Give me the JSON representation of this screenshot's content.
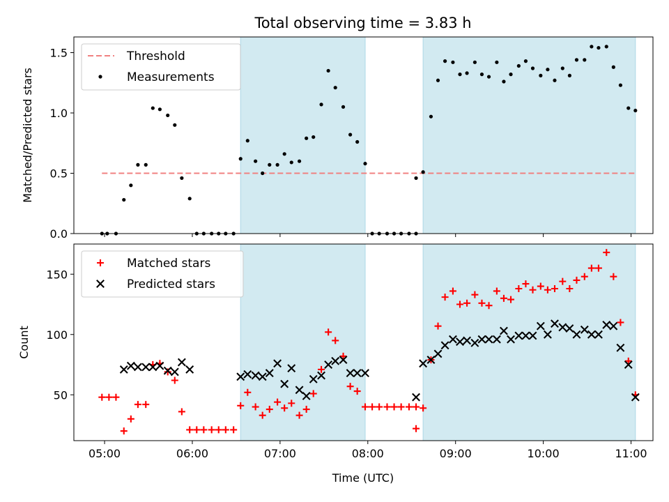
{
  "chart_data": {
    "type": "scatter",
    "title": "Total observing time = 3.83 h",
    "xlabel": "Time (UTC)",
    "x_unit": "hours UTC",
    "xlim": [
      4.65,
      11.25
    ],
    "x_ticks": [
      {
        "value": 5,
        "label": "05:00"
      },
      {
        "value": 6,
        "label": "06:00"
      },
      {
        "value": 7,
        "label": "07:00"
      },
      {
        "value": 8,
        "label": "08:00"
      },
      {
        "value": 9,
        "label": "09:00"
      },
      {
        "value": 10,
        "label": "10:00"
      },
      {
        "value": 11,
        "label": "11:00"
      }
    ],
    "observing_intervals": [
      [
        6.55,
        7.97
      ],
      [
        8.63,
        11.05
      ]
    ],
    "shade_color": "#add8e6",
    "panels": [
      {
        "id": "ratio",
        "ylabel": "Matched/Predicted stars",
        "ylim": [
          0,
          1.63
        ],
        "yticks": [
          "0.0",
          "0.5",
          "1.0",
          "1.5"
        ],
        "legend_position": "upper-left",
        "threshold": {
          "name": "Threshold",
          "value": 0.5,
          "x_range": [
            4.97,
            11.05
          ],
          "color": "#f08080"
        },
        "series": [
          {
            "name": "Measurements",
            "marker": "dot",
            "color": "#000000",
            "points": [
              [
                4.97,
                0.0
              ],
              [
                5.03,
                0.0
              ],
              [
                5.13,
                0.0
              ],
              [
                5.22,
                0.28
              ],
              [
                5.3,
                0.4
              ],
              [
                5.38,
                0.57
              ],
              [
                5.47,
                0.57
              ],
              [
                5.55,
                1.04
              ],
              [
                5.63,
                1.03
              ],
              [
                5.72,
                0.98
              ],
              [
                5.8,
                0.9
              ],
              [
                5.88,
                0.46
              ],
              [
                5.97,
                0.29
              ],
              [
                6.05,
                0.0
              ],
              [
                6.13,
                0.0
              ],
              [
                6.22,
                0.0
              ],
              [
                6.3,
                0.0
              ],
              [
                6.38,
                0.0
              ],
              [
                6.47,
                0.0
              ],
              [
                6.55,
                0.62
              ],
              [
                6.63,
                0.77
              ],
              [
                6.72,
                0.6
              ],
              [
                6.8,
                0.5
              ],
              [
                6.88,
                0.57
              ],
              [
                6.97,
                0.57
              ],
              [
                7.05,
                0.66
              ],
              [
                7.13,
                0.59
              ],
              [
                7.22,
                0.6
              ],
              [
                7.3,
                0.79
              ],
              [
                7.38,
                0.8
              ],
              [
                7.47,
                1.07
              ],
              [
                7.55,
                1.35
              ],
              [
                7.63,
                1.21
              ],
              [
                7.72,
                1.05
              ],
              [
                7.8,
                0.82
              ],
              [
                7.88,
                0.76
              ],
              [
                7.97,
                0.58
              ],
              [
                8.05,
                0.0
              ],
              [
                8.13,
                0.0
              ],
              [
                8.22,
                0.0
              ],
              [
                8.3,
                0.0
              ],
              [
                8.38,
                0.0
              ],
              [
                8.47,
                0.0
              ],
              [
                8.55,
                0.0
              ],
              [
                8.55,
                0.46
              ],
              [
                8.63,
                0.51
              ],
              [
                8.72,
                0.97
              ],
              [
                8.8,
                1.27
              ],
              [
                8.88,
                1.43
              ],
              [
                8.97,
                1.42
              ],
              [
                9.05,
                1.32
              ],
              [
                9.13,
                1.33
              ],
              [
                9.22,
                1.42
              ],
              [
                9.3,
                1.32
              ],
              [
                9.38,
                1.3
              ],
              [
                9.47,
                1.42
              ],
              [
                9.55,
                1.26
              ],
              [
                9.63,
                1.32
              ],
              [
                9.72,
                1.39
              ],
              [
                9.8,
                1.43
              ],
              [
                9.88,
                1.37
              ],
              [
                9.97,
                1.31
              ],
              [
                10.05,
                1.36
              ],
              [
                10.13,
                1.27
              ],
              [
                10.22,
                1.37
              ],
              [
                10.3,
                1.31
              ],
              [
                10.38,
                1.44
              ],
              [
                10.47,
                1.44
              ],
              [
                10.55,
                1.55
              ],
              [
                10.63,
                1.54
              ],
              [
                10.72,
                1.55
              ],
              [
                10.8,
                1.38
              ],
              [
                10.88,
                1.23
              ],
              [
                10.97,
                1.04
              ],
              [
                11.05,
                1.02
              ]
            ]
          }
        ]
      },
      {
        "id": "counts",
        "ylabel": "Count",
        "ylim": [
          12,
          175
        ],
        "yticks": [
          "50",
          "100",
          "150"
        ],
        "legend_position": "upper-left",
        "series": [
          {
            "name": "Matched stars",
            "marker": "plus",
            "color": "#ff0000",
            "points": [
              [
                4.97,
                48
              ],
              [
                5.05,
                48
              ],
              [
                5.13,
                48
              ],
              [
                5.22,
                20
              ],
              [
                5.3,
                30
              ],
              [
                5.38,
                42
              ],
              [
                5.47,
                42
              ],
              [
                5.55,
                75
              ],
              [
                5.63,
                76
              ],
              [
                5.72,
                69
              ],
              [
                5.8,
                62
              ],
              [
                5.88,
                36
              ],
              [
                5.97,
                21
              ],
              [
                6.05,
                21
              ],
              [
                6.13,
                21
              ],
              [
                6.22,
                21
              ],
              [
                6.3,
                21
              ],
              [
                6.38,
                21
              ],
              [
                6.47,
                21
              ],
              [
                6.55,
                41
              ],
              [
                6.63,
                52
              ],
              [
                6.72,
                40
              ],
              [
                6.8,
                33
              ],
              [
                6.88,
                38
              ],
              [
                6.97,
                44
              ],
              [
                7.05,
                39
              ],
              [
                7.13,
                43
              ],
              [
                7.22,
                33
              ],
              [
                7.3,
                38
              ],
              [
                7.38,
                51
              ],
              [
                7.47,
                71
              ],
              [
                7.55,
                102
              ],
              [
                7.63,
                95
              ],
              [
                7.72,
                82
              ],
              [
                7.8,
                57
              ],
              [
                7.88,
                53
              ],
              [
                7.97,
                40
              ],
              [
                8.05,
                40
              ],
              [
                8.13,
                40
              ],
              [
                8.22,
                40
              ],
              [
                8.3,
                40
              ],
              [
                8.38,
                40
              ],
              [
                8.47,
                40
              ],
              [
                8.55,
                40
              ],
              [
                8.55,
                22
              ],
              [
                8.63,
                39
              ],
              [
                8.72,
                79
              ],
              [
                8.8,
                107
              ],
              [
                8.88,
                131
              ],
              [
                8.97,
                136
              ],
              [
                9.05,
                125
              ],
              [
                9.13,
                126
              ],
              [
                9.22,
                133
              ],
              [
                9.3,
                126
              ],
              [
                9.38,
                124
              ],
              [
                9.47,
                136
              ],
              [
                9.55,
                130
              ],
              [
                9.63,
                129
              ],
              [
                9.72,
                138
              ],
              [
                9.8,
                142
              ],
              [
                9.88,
                137
              ],
              [
                9.97,
                140
              ],
              [
                10.05,
                137
              ],
              [
                10.13,
                138
              ],
              [
                10.22,
                144
              ],
              [
                10.3,
                138
              ],
              [
                10.38,
                145
              ],
              [
                10.47,
                148
              ],
              [
                10.55,
                155
              ],
              [
                10.63,
                155
              ],
              [
                10.72,
                168
              ],
              [
                10.8,
                148
              ],
              [
                10.88,
                110
              ],
              [
                10.97,
                78
              ],
              [
                11.05,
                50
              ]
            ]
          },
          {
            "name": "Predicted stars",
            "marker": "x",
            "color": "#000000",
            "points": [
              [
                5.22,
                71
              ],
              [
                5.3,
                74
              ],
              [
                5.38,
                73
              ],
              [
                5.47,
                73
              ],
              [
                5.55,
                73
              ],
              [
                5.63,
                74
              ],
              [
                5.72,
                70
              ],
              [
                5.8,
                69
              ],
              [
                5.88,
                77
              ],
              [
                5.97,
                71
              ],
              [
                6.55,
                65
              ],
              [
                6.63,
                67
              ],
              [
                6.72,
                66
              ],
              [
                6.8,
                65
              ],
              [
                6.88,
                68
              ],
              [
                6.97,
                76
              ],
              [
                7.05,
                59
              ],
              [
                7.13,
                72
              ],
              [
                7.22,
                54
              ],
              [
                7.3,
                49
              ],
              [
                7.38,
                63
              ],
              [
                7.47,
                66
              ],
              [
                7.55,
                75
              ],
              [
                7.63,
                78
              ],
              [
                7.72,
                79
              ],
              [
                7.8,
                68
              ],
              [
                7.88,
                68
              ],
              [
                7.97,
                68
              ],
              [
                8.55,
                48
              ],
              [
                8.63,
                76
              ],
              [
                8.72,
                79
              ],
              [
                8.8,
                84
              ],
              [
                8.88,
                91
              ],
              [
                8.97,
                96
              ],
              [
                9.05,
                94
              ],
              [
                9.13,
                95
              ],
              [
                9.22,
                93
              ],
              [
                9.3,
                96
              ],
              [
                9.38,
                96
              ],
              [
                9.47,
                96
              ],
              [
                9.55,
                103
              ],
              [
                9.63,
                96
              ],
              [
                9.72,
                99
              ],
              [
                9.8,
                99
              ],
              [
                9.88,
                99
              ],
              [
                9.97,
                107
              ],
              [
                10.05,
                100
              ],
              [
                10.13,
                109
              ],
              [
                10.22,
                106
              ],
              [
                10.3,
                105
              ],
              [
                10.38,
                100
              ],
              [
                10.47,
                104
              ],
              [
                10.55,
                100
              ],
              [
                10.63,
                100
              ],
              [
                10.72,
                108
              ],
              [
                10.8,
                107
              ],
              [
                10.88,
                89
              ],
              [
                10.97,
                75
              ],
              [
                11.05,
                48
              ]
            ]
          }
        ]
      }
    ]
  }
}
